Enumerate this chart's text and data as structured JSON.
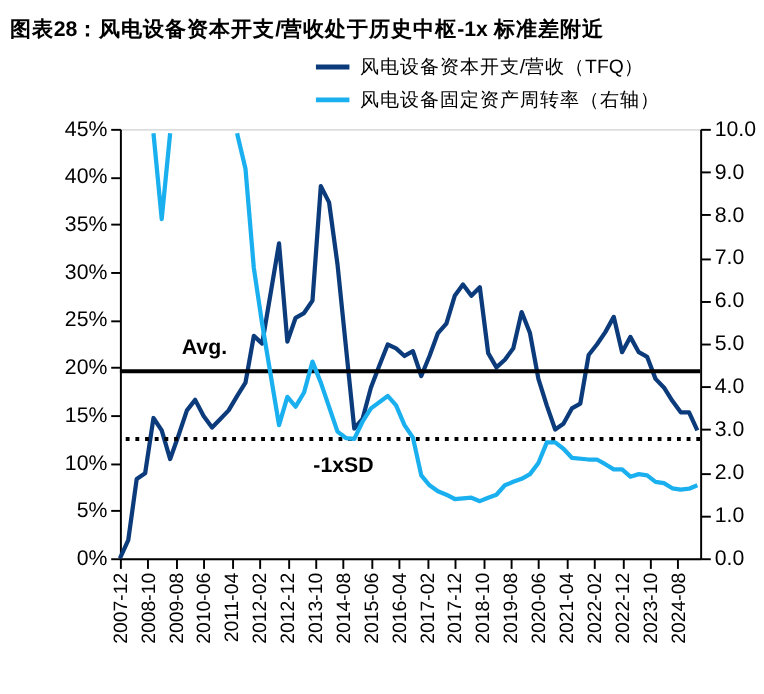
{
  "chart_data": {
    "type": "line",
    "title": "图表28：风电设备资本开支/营收处于历史中枢-1x 标准差附近",
    "xlim": [
      "2007-12",
      "2025-04"
    ],
    "xticks": [
      "2007-12",
      "2008-10",
      "2009-08",
      "2010-06",
      "2011-04",
      "2012-02",
      "2012-12",
      "2013-10",
      "2014-08",
      "2015-06",
      "2016-04",
      "2017-02",
      "2017-12",
      "2018-10",
      "2019-08",
      "2020-06",
      "2021-04",
      "2022-02",
      "2022-12",
      "2023-10",
      "2024-08"
    ],
    "ylim": [
      0,
      45
    ],
    "yticks": [
      {
        "value": 0,
        "label": "0%"
      },
      {
        "value": 5,
        "label": "5%"
      },
      {
        "value": 10,
        "label": "10%"
      },
      {
        "value": 15,
        "label": "15%"
      },
      {
        "value": 20,
        "label": "20%"
      },
      {
        "value": 25,
        "label": "25%"
      },
      {
        "value": 30,
        "label": "30%"
      },
      {
        "value": 35,
        "label": "35%"
      },
      {
        "value": 40,
        "label": "40%"
      },
      {
        "value": 45,
        "label": "45%"
      }
    ],
    "y2lim": [
      0,
      10
    ],
    "y2ticks": [
      {
        "value": 0,
        "label": "0.0"
      },
      {
        "value": 1,
        "label": "1.0"
      },
      {
        "value": 2,
        "label": "2.0"
      },
      {
        "value": 3,
        "label": "3.0"
      },
      {
        "value": 4,
        "label": "4.0"
      },
      {
        "value": 5,
        "label": "5.0"
      },
      {
        "value": 6,
        "label": "6.0"
      },
      {
        "value": 7,
        "label": "7.0"
      },
      {
        "value": 8,
        "label": "8.0"
      },
      {
        "value": 9,
        "label": "9.0"
      },
      {
        "value": 10,
        "label": "10.0"
      }
    ],
    "series": [
      {
        "name": "风电设备资本开支/营收（TFQ）",
        "color": "#0c3b7c",
        "x": [
          "2007-12",
          "2008-03",
          "2008-06",
          "2008-09",
          "2008-12",
          "2009-03",
          "2009-06",
          "2009-09",
          "2009-12",
          "2010-03",
          "2010-06",
          "2010-09",
          "2010-12",
          "2011-03",
          "2011-06",
          "2011-09",
          "2011-12",
          "2012-03",
          "2012-09",
          "2012-12",
          "2013-03",
          "2013-06",
          "2013-09",
          "2013-12",
          "2014-03",
          "2014-06",
          "2014-12",
          "2015-03",
          "2015-06",
          "2015-09",
          "2015-12",
          "2016-03",
          "2016-06",
          "2016-09",
          "2016-12",
          "2017-03",
          "2017-06",
          "2017-09",
          "2017-12",
          "2018-03",
          "2018-06",
          "2018-09",
          "2018-12",
          "2019-03",
          "2019-06",
          "2019-09",
          "2019-12",
          "2020-03",
          "2020-06",
          "2020-09",
          "2020-12",
          "2021-03",
          "2021-06",
          "2021-09",
          "2021-12",
          "2022-03",
          "2022-06",
          "2022-09",
          "2022-12",
          "2023-03",
          "2023-06",
          "2023-09",
          "2023-12",
          "2024-03",
          "2024-06",
          "2024-09",
          "2024-12",
          "2025-03"
        ],
        "values": [
          0.0,
          1.9,
          8.3,
          8.9,
          14.7,
          13.4,
          10.4,
          12.9,
          15.5,
          16.6,
          14.9,
          13.7,
          14.6,
          15.5,
          17.0,
          18.4,
          23.3,
          22.5,
          33.0,
          22.7,
          25.2,
          25.7,
          27.0,
          39.0,
          37.3,
          30.8,
          13.6,
          14.6,
          17.9,
          20.2,
          22.4,
          22.0,
          21.2,
          21.7,
          19.1,
          21.2,
          23.6,
          24.6,
          27.5,
          28.7,
          27.5,
          28.4,
          21.5,
          20.0,
          20.8,
          22.0,
          25.8,
          23.6,
          18.8,
          16.0,
          13.5,
          14.1,
          15.7,
          16.2,
          21.3,
          22.4,
          23.7,
          25.3,
          21.6,
          23.2,
          21.6,
          21.1,
          18.8,
          17.9,
          16.5,
          15.3,
          15.3,
          13.4
        ]
      },
      {
        "name": "风电设备固定资产周转率（右轴）",
        "color": "#1ab0ef",
        "axis": "y2",
        "x": [
          "2008-12",
          "2009-03",
          "2009-06",
          "2011-03",
          "2011-06",
          "2011-09",
          "2011-12",
          "2012-03",
          "2012-09",
          "2012-12",
          "2013-03",
          "2013-06",
          "2013-09",
          "2013-12",
          "2014-06",
          "2014-09",
          "2014-12",
          "2015-03",
          "2015-06",
          "2015-12",
          "2016-03",
          "2016-06",
          "2016-09",
          "2016-12",
          "2017-03",
          "2017-06",
          "2017-09",
          "2017-12",
          "2018-06",
          "2018-09",
          "2018-12",
          "2019-03",
          "2019-06",
          "2019-09",
          "2019-12",
          "2020-03",
          "2020-06",
          "2020-09",
          "2020-12",
          "2021-03",
          "2021-06",
          "2021-12",
          "2022-03",
          "2022-06",
          "2022-09",
          "2022-12",
          "2023-03",
          "2023-06",
          "2023-09",
          "2023-12",
          "2024-03",
          "2024-06",
          "2024-09",
          "2024-12",
          "2025-03"
        ],
        "values": [
          9.9,
          7.9,
          9.9,
          null,
          9.9,
          9.07,
          6.76,
          5.46,
          3.1,
          3.76,
          3.53,
          3.86,
          4.58,
          4.09,
          2.95,
          2.8,
          2.78,
          3.18,
          3.49,
          3.78,
          3.56,
          3.1,
          2.81,
          1.93,
          1.7,
          1.56,
          1.48,
          1.38,
          1.41,
          1.33,
          1.41,
          1.48,
          1.7,
          1.78,
          1.85,
          1.96,
          2.22,
          2.7,
          2.7,
          2.55,
          2.34,
          2.3,
          2.3,
          2.19,
          2.07,
          2.07,
          1.9,
          1.96,
          1.93,
          1.78,
          1.75,
          1.63,
          1.6,
          1.62,
          1.7
        ]
      }
    ],
    "ref_lines": [
      {
        "axis": "y",
        "value": 19.6,
        "label": "Avg.",
        "color": "#000000",
        "line_style": "solid"
      },
      {
        "axis": "y",
        "value": 12.5,
        "label": "-1xSD",
        "color": "#000000",
        "line_style": "dotted"
      }
    ],
    "legend": "top",
    "grid": false,
    "marker": "none",
    "line_style": "solid"
  }
}
